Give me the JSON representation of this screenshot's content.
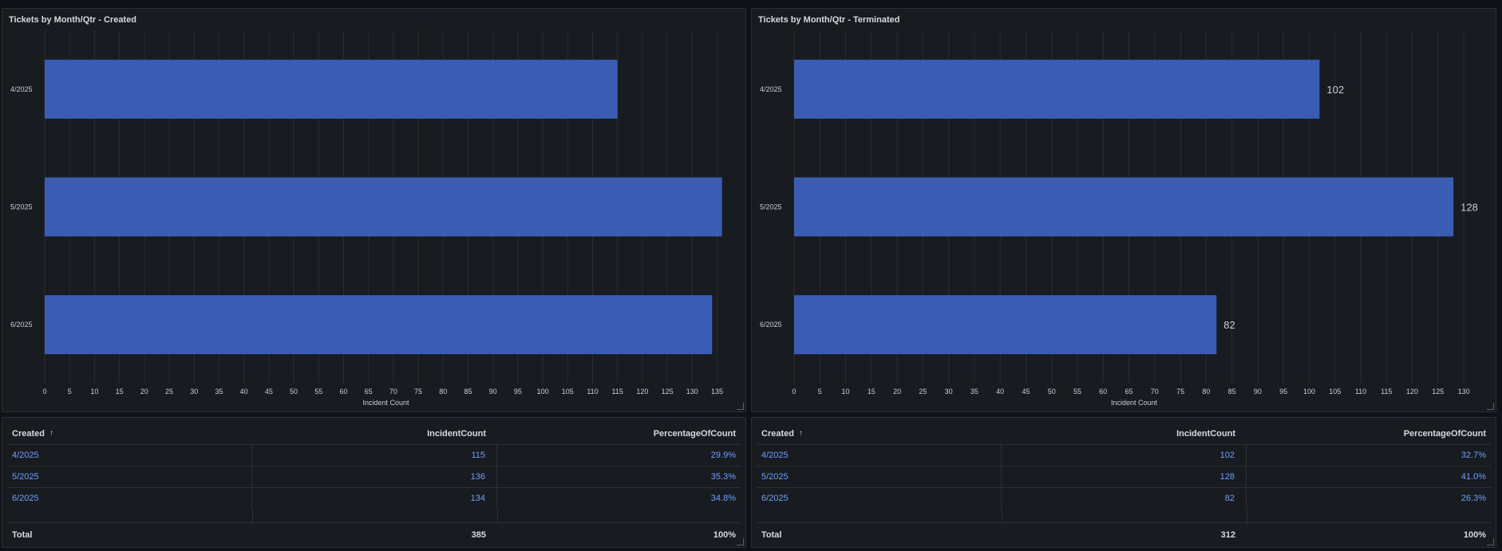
{
  "colors": {
    "bar": "#3a5db3",
    "grid": "#2a2d33",
    "axis_text": "#ccccdc",
    "link": "#6e9fff"
  },
  "chart_data": [
    {
      "type": "bar",
      "orientation": "horizontal",
      "title": "Tickets by Month/Qtr - Created",
      "categories": [
        "4/2025",
        "5/2025",
        "6/2025"
      ],
      "values": [
        115,
        136,
        134
      ],
      "xlabel": "Incident Count",
      "ylabel": "",
      "xlim": [
        0,
        137
      ],
      "ticks": [
        0,
        5,
        10,
        15,
        20,
        25,
        30,
        35,
        40,
        45,
        50,
        55,
        60,
        65,
        70,
        75,
        80,
        85,
        90,
        95,
        100,
        105,
        110,
        115,
        120,
        125,
        130,
        135
      ],
      "show_value_labels": false
    },
    {
      "type": "bar",
      "orientation": "horizontal",
      "title": "Tickets by Month/Qtr - Terminated",
      "categories": [
        "4/2025",
        "5/2025",
        "6/2025"
      ],
      "values": [
        102,
        128,
        82
      ],
      "xlabel": "Incident Count",
      "ylabel": "",
      "xlim": [
        0,
        132
      ],
      "ticks": [
        0,
        5,
        10,
        15,
        20,
        25,
        30,
        35,
        40,
        45,
        50,
        55,
        60,
        65,
        70,
        75,
        80,
        85,
        90,
        95,
        100,
        105,
        110,
        115,
        120,
        125,
        130
      ],
      "show_value_labels": true
    }
  ],
  "tables": [
    {
      "headers": {
        "created": "Created",
        "count": "IncidentCount",
        "pct": "PercentageOfCount"
      },
      "sort_icon": "↑",
      "rows": [
        {
          "created": "4/2025",
          "count": "115",
          "pct": "29.9%"
        },
        {
          "created": "5/2025",
          "count": "136",
          "pct": "35.3%"
        },
        {
          "created": "6/2025",
          "count": "134",
          "pct": "34.8%"
        }
      ],
      "footer": {
        "label": "Total",
        "count": "385",
        "pct": "100%"
      }
    },
    {
      "headers": {
        "created": "Created",
        "count": "IncidentCount",
        "pct": "PercentageOfCount"
      },
      "sort_icon": "↑",
      "rows": [
        {
          "created": "4/2025",
          "count": "102",
          "pct": "32.7%"
        },
        {
          "created": "5/2025",
          "count": "128",
          "pct": "41.0%"
        },
        {
          "created": "6/2025",
          "count": "82",
          "pct": "26.3%"
        }
      ],
      "footer": {
        "label": "Total",
        "count": "312",
        "pct": "100%"
      }
    }
  ]
}
